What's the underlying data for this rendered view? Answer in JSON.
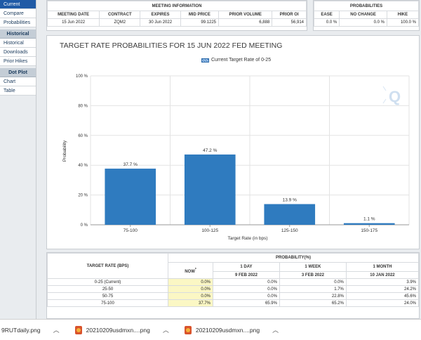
{
  "sidebar": {
    "items_top": [
      "Current",
      "Compare",
      "Probabilities"
    ],
    "section_historical": "Historical",
    "items_historical": [
      "Historical",
      "Downloads",
      "Prior Hikes"
    ],
    "section_dot_plot": "Dot Plot",
    "items_dot_plot": [
      "Chart",
      "Table"
    ]
  },
  "meeting_info": {
    "title": "MEETING INFORMATION",
    "headers": [
      "MEETING DATE",
      "CONTRACT",
      "EXPIRES",
      "MID PRICE",
      "PRIOR VOLUME",
      "PRIOR OI"
    ],
    "row": [
      "15 Jun 2022",
      "ZQM2",
      "30 Jun 2022",
      "99.1225",
      "6,888",
      "56,914"
    ]
  },
  "probabilities": {
    "title": "PROBABILITIES",
    "headers": [
      "EASE",
      "NO CHANGE",
      "HIKE"
    ],
    "row": [
      "0.0 %",
      "0.0 %",
      "100.0 %"
    ]
  },
  "chart_data": {
    "type": "bar",
    "title": "TARGET RATE PROBABILITIES FOR 15 JUN 2022 FED MEETING",
    "legend": "Current Target Rate of 0-25",
    "xlabel": "Target Rate (in bps)",
    "ylabel": "Probability",
    "categories": [
      "75-100",
      "100-125",
      "125-150",
      "150-175"
    ],
    "values": [
      37.7,
      47.2,
      13.9,
      1.1
    ],
    "value_labels": [
      "37.7 %",
      "47.2 %",
      "13.9 %",
      "1.1 %"
    ],
    "y_ticks": [
      "0 %",
      "20 %",
      "40 %",
      "60 %",
      "80 %",
      "100 %"
    ],
    "ylim": [
      0,
      100
    ],
    "color": "#2f7bbf",
    "grid": true
  },
  "prob_table": {
    "col_target": "TARGET RATE (BPS)",
    "col_group": "PROBABILITY(%)",
    "col_now": "NOW",
    "col_now_mark": "*",
    "col_1day": [
      "1 DAY",
      "9 FEB 2022"
    ],
    "col_1week": [
      "1 WEEK",
      "3 FEB 2022"
    ],
    "col_1month": [
      "1 MONTH",
      "10 JAN 2022"
    ],
    "rows": [
      [
        "0-25 (Current)",
        "0.0%",
        "0.0%",
        "0.0%",
        "3.9%"
      ],
      [
        "25-50",
        "0.0%",
        "0.0%",
        "1.7%",
        "24.2%"
      ],
      [
        "50-75",
        "0.0%",
        "0.0%",
        "22.8%",
        "45.6%"
      ],
      [
        "75-100",
        "37.7%",
        "65.9%",
        "65.2%",
        "24.0%"
      ]
    ]
  },
  "downloads": [
    {
      "name": "9RUTdaily.png"
    },
    {
      "name": "20210209usdmxn....png"
    },
    {
      "name": "20210209usdmxn....png"
    }
  ]
}
